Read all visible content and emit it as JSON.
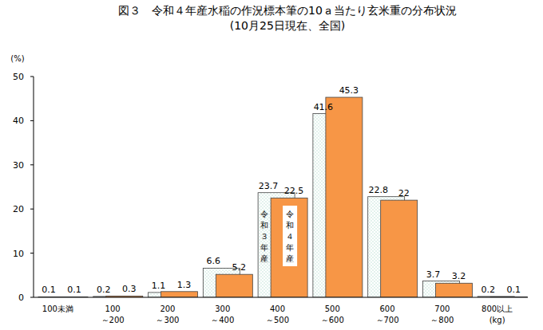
{
  "chart_data": {
    "type": "bar",
    "title": "図３　令和４年産水稲の作況標本筆の10ａ当たり玄米重の分布状況",
    "subtitle": "(10月25日現在、全国)",
    "y_label": "(%)",
    "x_label": "(kg)",
    "categories": [
      "100未満",
      "100～200",
      "200～300",
      "300～400",
      "400～500",
      "500～600",
      "600～700",
      "700～800",
      "800以上"
    ],
    "series": [
      {
        "name": "令和３年産",
        "color": "#bfe3d6",
        "values": [
          0.1,
          0.2,
          1.1,
          6.6,
          23.7,
          41.6,
          22.8,
          3.7,
          0.2
        ]
      },
      {
        "name": "令和４年産",
        "color": "#f79646",
        "values": [
          0.1,
          0.3,
          1.3,
          5.2,
          22.5,
          45.3,
          22.0,
          3.2,
          0.1
        ]
      }
    ],
    "ylim": [
      0,
      50
    ],
    "yticks": [
      0,
      10,
      20,
      30,
      40,
      50
    ],
    "grid": false,
    "data_labels": true
  }
}
